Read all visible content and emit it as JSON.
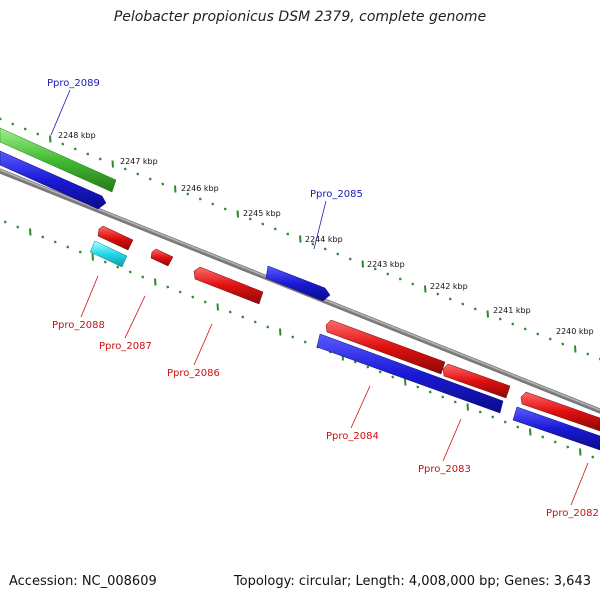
{
  "title": "Pelobacter propionicus DSM 2379, complete genome",
  "footer": {
    "accession": "Accession: NC_008609",
    "summary": "Topology: circular; Length: 4,008,000 bp; Genes: 3,643"
  },
  "scale_labels": [
    "2248 kbp",
    "2247 kbp",
    "2246 kbp",
    "2245 kbp",
    "2244 kbp",
    "2243 kbp",
    "2242 kbp",
    "2241 kbp",
    "2240 kbp"
  ],
  "gene_labels": {
    "ppro_2089": "Ppro_2089",
    "ppro_2085": "Ppro_2085",
    "ppro_2088": "Ppro_2088",
    "ppro_2087": "Ppro_2087",
    "ppro_2086": "Ppro_2086",
    "ppro_2084": "Ppro_2084",
    "ppro_2083": "Ppro_2083",
    "ppro_2082": "Ppro_2082"
  },
  "colors": {
    "backbone": "#888888",
    "tick": "#2a8a2a",
    "forward_gene": "#1a1ad6",
    "reverse_gene": "#e01010",
    "rna_feature": "#22d8e8",
    "gc_track": "#44bb33",
    "label_forward": "#1a1ab0",
    "label_reverse": "#cc1010"
  }
}
